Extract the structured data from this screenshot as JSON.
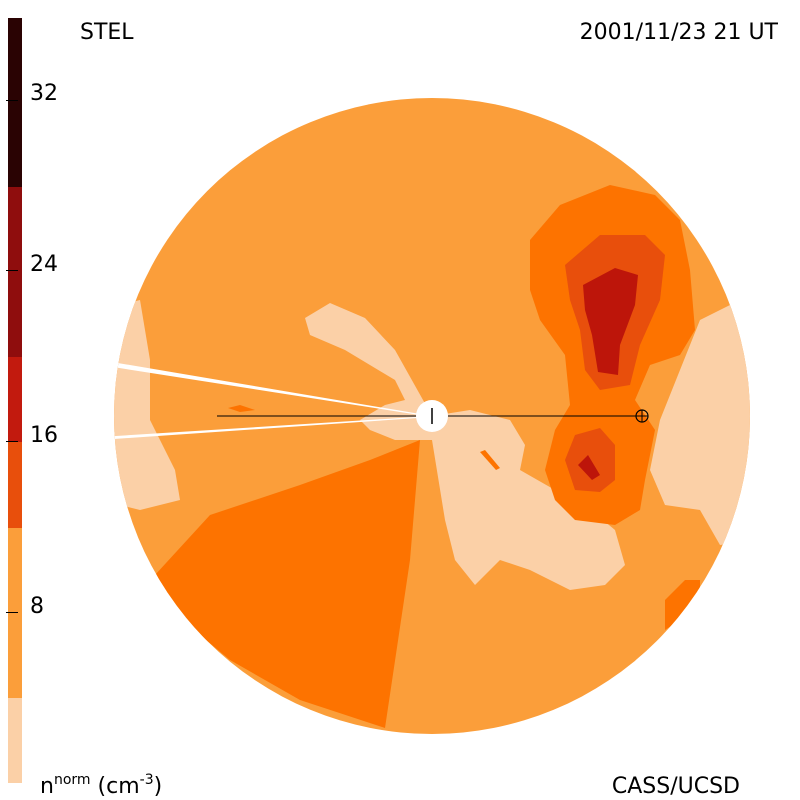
{
  "header": {
    "instrument": "STEL",
    "datetime": "2001/11/23 21 UT"
  },
  "footer": {
    "credit": "CASS/UCSD",
    "unit_base": "n",
    "unit_sup": "norm",
    "unit_rest": " (cm",
    "unit_exp": "-3",
    "unit_close": ")"
  },
  "colorbar": {
    "tick_labels": [
      "32",
      "24",
      "16",
      "8"
    ],
    "colors": [
      "#fbd0a7",
      "#fb9e3a",
      "#fd7300",
      "#e84f0c",
      "#c21a0e",
      "#8f0d0d",
      "#5a0505",
      "#2a0303"
    ]
  },
  "map": {
    "colors": {
      "level1": "#fbd0a7",
      "level2": "#fb9e3a",
      "level3": "#fd7300",
      "level4": "#e84f0c",
      "level5": "#bd150a",
      "sun": "#ffffff",
      "line": "#000000"
    },
    "earth_symbol": "earth-symbol",
    "sun_symbol": "sun-symbol"
  }
}
